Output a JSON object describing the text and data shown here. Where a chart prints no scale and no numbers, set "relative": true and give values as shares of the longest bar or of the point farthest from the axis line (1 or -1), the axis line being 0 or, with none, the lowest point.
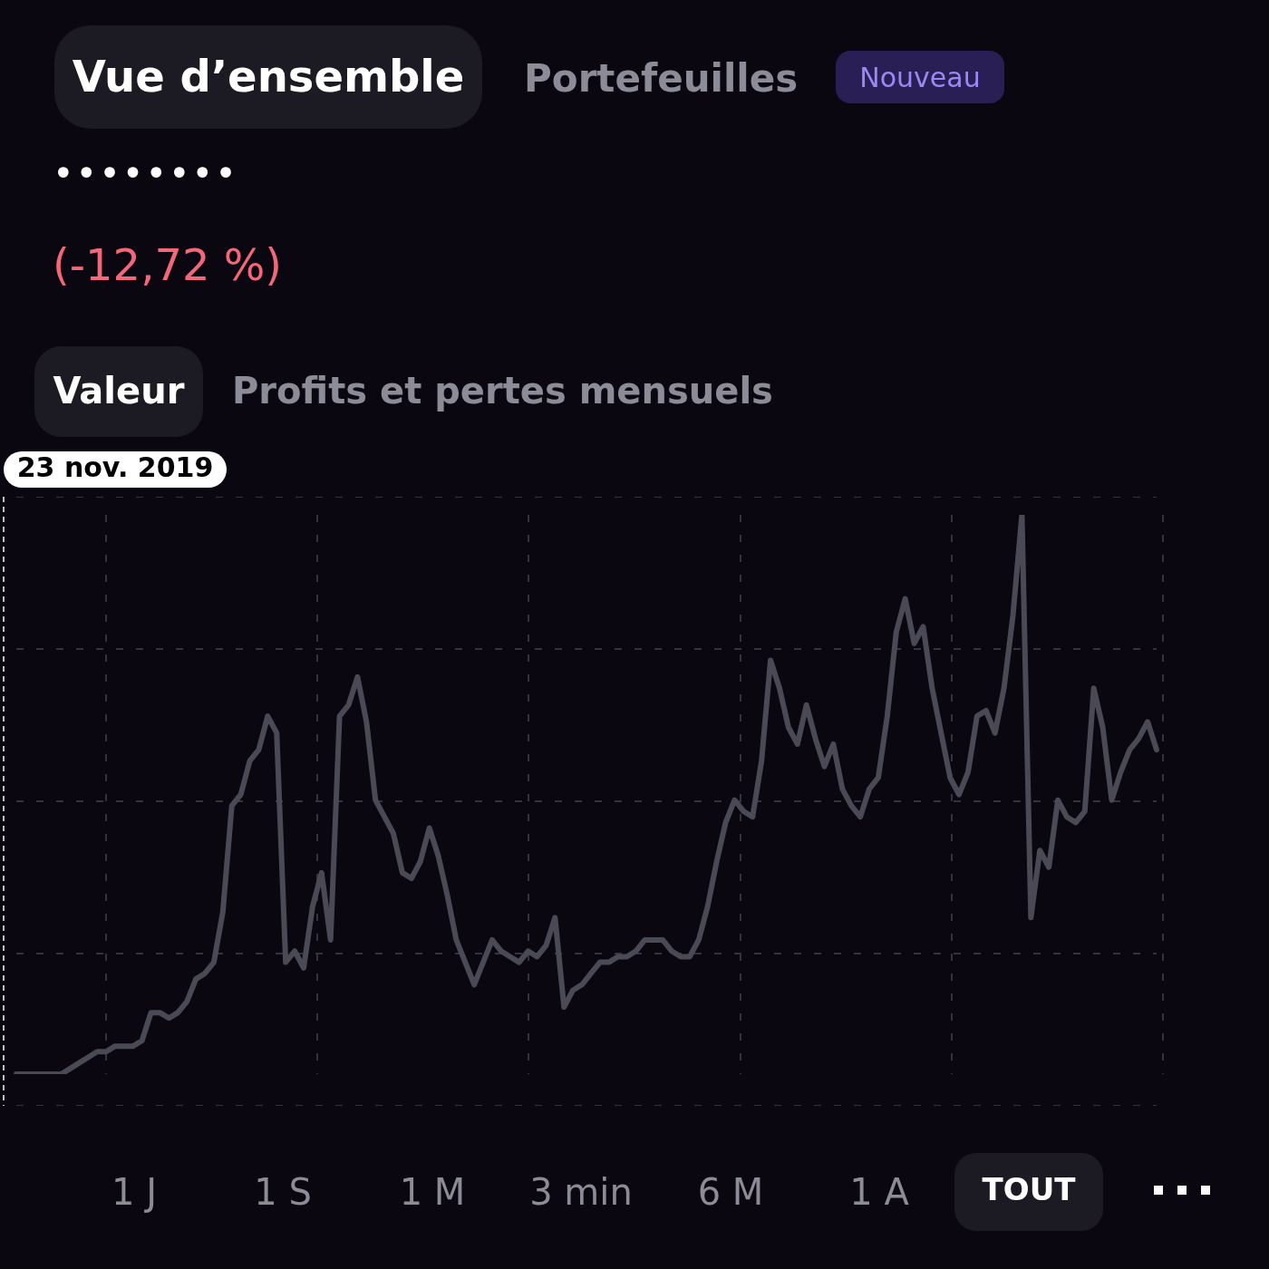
{
  "chart_data": {
    "type": "line",
    "relative": true,
    "grid": true,
    "marker": "none",
    "line_style": "solid",
    "annotations": [
      "Vue d’ensemble",
      "Portefeuilles",
      "Nouveau",
      "••••••••",
      "(-12,72 %)",
      "Valeur",
      "Profits et pertes mensuels",
      "23 nov. 2019",
      "1 J",
      "1 S",
      "1 M",
      "3 min",
      "6 M",
      "1 A",
      "TOUT"
    ],
    "categories": [
      null,
      null,
      null,
      null,
      null,
      null,
      null,
      null,
      null,
      null,
      null,
      null,
      null,
      null,
      null,
      null,
      null,
      null,
      null,
      null,
      null,
      null,
      null,
      null,
      null,
      null,
      null,
      null,
      null,
      null,
      null,
      null,
      null,
      null,
      null,
      null,
      null,
      null,
      null,
      null,
      null,
      null,
      null,
      null,
      null,
      null,
      null,
      null,
      null,
      null,
      null,
      null,
      null,
      null,
      null,
      null,
      null,
      null,
      null,
      null,
      null,
      null,
      null,
      null,
      null,
      null,
      null,
      null,
      null,
      null,
      null,
      null,
      null,
      null,
      null,
      null,
      null,
      null,
      null,
      null,
      null,
      null,
      null,
      null,
      null,
      null,
      null,
      null,
      null,
      null,
      null,
      null,
      null,
      null,
      null,
      null,
      null,
      null,
      null,
      null,
      null,
      null,
      null,
      null,
      null,
      null,
      null,
      null,
      null,
      null,
      null,
      null,
      null,
      null,
      null,
      null,
      null,
      null,
      null,
      null,
      null,
      null,
      null,
      null,
      null,
      null,
      null,
      null
    ],
    "series": [
      {
        "color": "#4a4a56",
        "values": [
          0,
          0,
          0,
          0,
          0,
          0,
          0.01,
          0.02,
          0.03,
          0.04,
          0.04,
          0.05,
          0.05,
          0.05,
          0.06,
          0.11,
          0.11,
          0.1,
          0.11,
          0.13,
          0.17,
          0.18,
          0.2,
          0.29,
          0.48,
          0.5,
          0.56,
          0.58,
          0.64,
          0.61,
          0.2,
          0.22,
          0.19,
          0.3,
          0.36,
          0.24,
          0.64,
          0.66,
          0.71,
          0.63,
          0.49,
          0.46,
          0.43,
          0.36,
          0.35,
          0.38,
          0.44,
          0.39,
          0.32,
          0.24,
          0.2,
          0.16,
          0.2,
          0.24,
          0.22,
          0.21,
          0.2,
          0.22,
          0.21,
          0.23,
          0.28,
          0.12,
          0.15,
          0.16,
          0.18,
          0.2,
          0.2,
          0.21,
          0.21,
          0.22,
          0.24,
          0.24,
          0.24,
          0.22,
          0.21,
          0.21,
          0.24,
          0.3,
          0.38,
          0.45,
          0.49,
          0.47,
          0.46,
          0.56,
          0.74,
          0.69,
          0.62,
          0.59,
          0.66,
          0.6,
          0.55,
          0.59,
          0.51,
          0.48,
          0.46,
          0.51,
          0.53,
          0.64,
          0.79,
          0.85,
          0.77,
          0.8,
          0.69,
          0.61,
          0.53,
          0.5,
          0.54,
          0.64,
          0.65,
          0.61,
          0.69,
          0.82,
          1,
          0.28,
          0.4,
          0.37,
          0.49,
          0.46,
          0.45,
          0.47,
          0.69,
          0.62,
          0.49,
          0.54,
          0.58,
          0.6,
          0.63,
          0.58
        ]
      }
    ]
  }
}
